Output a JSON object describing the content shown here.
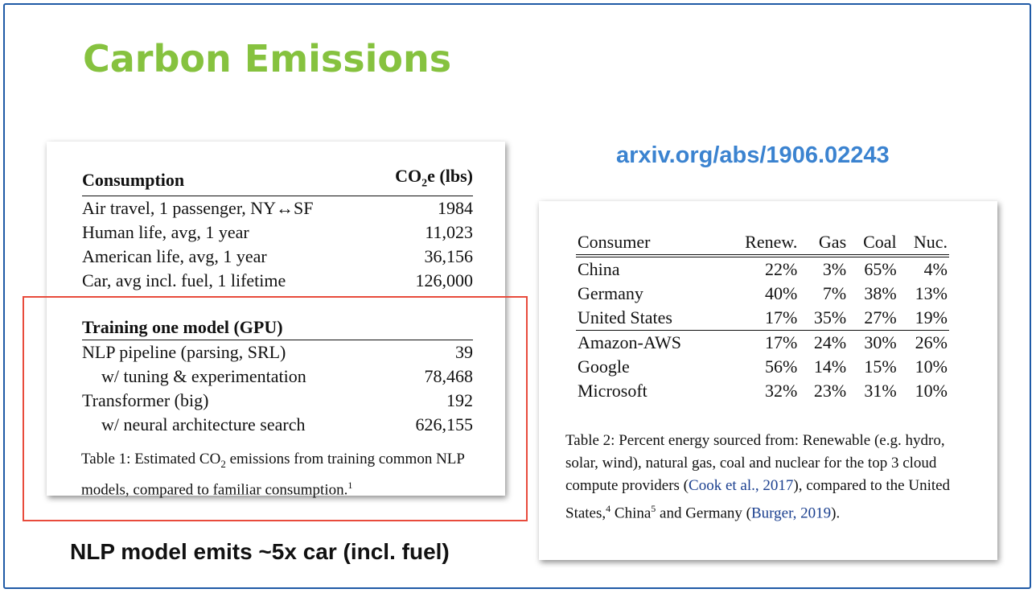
{
  "slide": {
    "title": "Carbon Emissions",
    "link": "arxiv.org/abs/1906.02243",
    "caption": "NLP model emits ~5x car (incl. fuel)"
  },
  "colors": {
    "title": "#86c23f",
    "link": "#3b83d0",
    "frame": "#1f5aa6",
    "highlight": "#e84b3c",
    "citation": "#1a3f8f"
  },
  "table1": {
    "header": {
      "col1": "Consumption",
      "col2_main": "CO",
      "col2_sub": "2",
      "col2_rest": "e (lbs)"
    },
    "consumption_rows": [
      {
        "label": "Air travel, 1 passenger, NY↔SF",
        "value": "1984"
      },
      {
        "label": "Human life, avg, 1 year",
        "value": "11,023"
      },
      {
        "label": "American life, avg, 1 year",
        "value": "36,156"
      },
      {
        "label": "Car, avg incl. fuel, 1 lifetime",
        "value": "126,000"
      }
    ],
    "training_header": "Training one model (GPU)",
    "training_rows": [
      {
        "label": "NLP pipeline (parsing, SRL)",
        "value": "39",
        "indent": false
      },
      {
        "label": "w/ tuning & experimentation",
        "value": "78,468",
        "indent": true
      },
      {
        "label": "Transformer (big)",
        "value": "192",
        "indent": false
      },
      {
        "label": "w/ neural architecture search",
        "value": "626,155",
        "indent": true
      }
    ],
    "caption_a": "Table 1: Estimated CO",
    "caption_sub": "2",
    "caption_b": " emissions from training com­mon NLP models, compared to familiar consumption.",
    "caption_sup": "1"
  },
  "table2": {
    "headers": [
      "Consumer",
      "Renew.",
      "Gas",
      "Coal",
      "Nuc."
    ],
    "rows": [
      [
        "China",
        "22%",
        "3%",
        "65%",
        "4%"
      ],
      [
        "Germany",
        "40%",
        "7%",
        "38%",
        "13%"
      ],
      [
        "United States",
        "17%",
        "35%",
        "27%",
        "19%"
      ],
      [
        "Amazon-AWS",
        "17%",
        "24%",
        "30%",
        "26%"
      ],
      [
        "Google",
        "56%",
        "14%",
        "15%",
        "10%"
      ],
      [
        "Microsoft",
        "32%",
        "23%",
        "31%",
        "10%"
      ]
    ],
    "caption": {
      "p1": "Table 2: Percent energy sourced from: Renewable (e.g. hydro, solar, wind), natural gas, coal and nuclear for the top 3 cloud compute providers (",
      "cite1": "Cook et al., 2017",
      "p2": "), compared to the United States,",
      "sup1": "4",
      "p3": " China",
      "sup2": "5",
      "p4": " and Germany (",
      "cite2": "Burger, 2019",
      "p5": ")."
    }
  }
}
